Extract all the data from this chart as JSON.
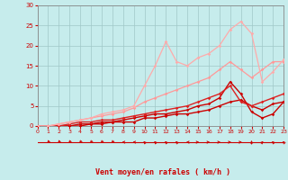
{
  "title": "",
  "xlabel": "Vent moyen/en rafales ( km/h )",
  "xlim": [
    0,
    23
  ],
  "ylim": [
    0,
    30
  ],
  "xticks": [
    0,
    1,
    2,
    3,
    4,
    5,
    6,
    7,
    8,
    9,
    10,
    11,
    12,
    13,
    14,
    15,
    16,
    17,
    18,
    19,
    20,
    21,
    22,
    23
  ],
  "yticks": [
    0,
    5,
    10,
    15,
    20,
    25,
    30
  ],
  "background_color": "#c6ecec",
  "grid_color": "#a0c8c8",
  "lines": [
    {
      "x": [
        0,
        1,
        2,
        3,
        4,
        5,
        6,
        7,
        8,
        9,
        10,
        11,
        12,
        13,
        14,
        15,
        16,
        17,
        18,
        19,
        20,
        21,
        22,
        23
      ],
      "y": [
        0,
        0,
        0,
        0,
        0,
        0.5,
        0.5,
        1,
        1,
        1,
        2,
        2,
        2.5,
        3,
        3,
        3.5,
        4,
        5,
        6,
        6.5,
        5,
        4,
        5.5,
        6
      ],
      "color": "#cc0000",
      "lw": 1.0,
      "marker": "D",
      "ms": 1.8
    },
    {
      "x": [
        0,
        1,
        2,
        3,
        4,
        5,
        6,
        7,
        8,
        9,
        10,
        11,
        12,
        13,
        14,
        15,
        16,
        17,
        18,
        19,
        20,
        21,
        22,
        23
      ],
      "y": [
        0,
        0,
        0,
        0,
        0.5,
        0.5,
        1,
        1,
        1.5,
        2,
        2.5,
        3,
        3,
        3.5,
        4,
        5,
        5.5,
        7,
        11,
        8,
        3.5,
        2,
        3,
        6
      ],
      "color": "#cc0000",
      "lw": 1.0,
      "marker": "D",
      "ms": 1.8
    },
    {
      "x": [
        0,
        1,
        2,
        3,
        4,
        5,
        6,
        7,
        8,
        9,
        10,
        11,
        12,
        13,
        14,
        15,
        16,
        17,
        18,
        19,
        20,
        21,
        22,
        23
      ],
      "y": [
        0,
        0,
        0,
        0.5,
        1,
        1,
        1.5,
        1.5,
        2,
        2.5,
        3,
        3.5,
        4,
        4.5,
        5,
        6,
        7,
        8,
        10,
        6,
        5,
        6,
        7,
        8
      ],
      "color": "#dd2222",
      "lw": 1.0,
      "marker": "D",
      "ms": 1.8
    },
    {
      "x": [
        0,
        1,
        2,
        3,
        4,
        5,
        6,
        7,
        8,
        9,
        10,
        11,
        12,
        13,
        14,
        15,
        16,
        17,
        18,
        19,
        20,
        21,
        22,
        23
      ],
      "y": [
        0,
        0,
        0.5,
        1,
        1.5,
        2,
        2.5,
        3,
        3.5,
        4.5,
        6,
        7,
        8,
        9,
        10,
        11,
        12,
        14,
        16,
        14,
        12,
        14,
        16,
        16
      ],
      "color": "#ff9999",
      "lw": 0.9,
      "marker": "D",
      "ms": 1.8
    },
    {
      "x": [
        0,
        1,
        2,
        3,
        4,
        5,
        6,
        7,
        8,
        9,
        10,
        11,
        12,
        13,
        14,
        15,
        16,
        17,
        18,
        19,
        20,
        21,
        22,
        23
      ],
      "y": [
        0,
        0,
        0.5,
        1,
        1.5,
        2,
        3,
        3.5,
        4,
        5,
        10,
        15,
        21,
        16,
        15,
        17,
        18,
        20,
        24,
        26,
        23,
        11,
        13.5,
        16.5
      ],
      "color": "#ffaaaa",
      "lw": 0.9,
      "marker": "D",
      "ms": 1.8
    }
  ],
  "wind_angles": [
    225,
    225,
    225,
    225,
    225,
    225,
    225,
    225,
    270,
    270,
    315,
    315,
    315,
    315,
    270,
    90,
    90,
    90,
    90,
    90,
    0,
    45,
    315,
    315
  ],
  "arrow_color": "#cc0000"
}
